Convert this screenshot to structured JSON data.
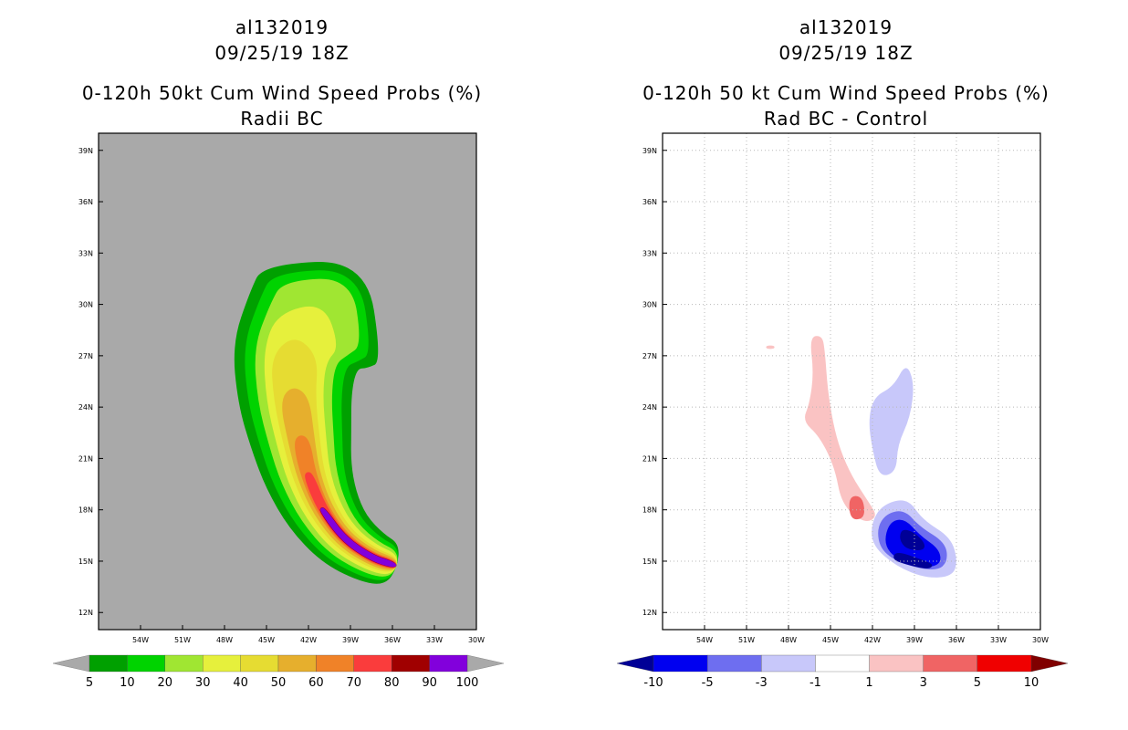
{
  "left": {
    "title_line1": "al132019",
    "title_line2": "09/25/19 18Z",
    "title_line3": "0-120h 50kt Cum Wind Speed Probs (%)",
    "title_line4": "Radii BC"
  },
  "right": {
    "title_line1": "al132019",
    "title_line2": "09/25/19 18Z",
    "title_line3": "0-120h 50 kt Cum Wind Speed Probs (%)",
    "title_line4": "Rad BC - Control"
  },
  "chart_data": [
    {
      "type": "heatmap",
      "panel": "left",
      "title": "0-120h 50kt Cum Wind Speed Probs (%)",
      "subtitle": "Radii BC",
      "storm": "al132019",
      "time": "09/25/19 18Z",
      "xlim": [
        -57,
        -30
      ],
      "ylim": [
        11,
        40
      ],
      "x_ticks": [
        "54W",
        "51W",
        "48W",
        "45W",
        "42W",
        "39W",
        "36W",
        "33W",
        "30W"
      ],
      "y_ticks": [
        "12N",
        "15N",
        "18N",
        "21N",
        "24N",
        "27N",
        "30N",
        "33N",
        "36N",
        "39N"
      ],
      "background": "#a9a9a9",
      "colorbar": {
        "levels": [
          "5",
          "10",
          "20",
          "30",
          "40",
          "50",
          "60",
          "70",
          "80",
          "90",
          "100"
        ],
        "colors": [
          "#00a000",
          "#00d300",
          "#a0e632",
          "#e6f03c",
          "#e6dc32",
          "#e6af2d",
          "#f08228",
          "#fa3c3c",
          "#a00000",
          "#8200dc"
        ]
      },
      "track_center": [
        [
          -36,
          14.8
        ],
        [
          -37.5,
          15.2
        ],
        [
          -39.5,
          16.3
        ],
        [
          -41,
          18
        ],
        [
          -42,
          20
        ],
        [
          -42.5,
          22
        ],
        [
          -43,
          24.5
        ],
        [
          -43,
          27
        ],
        [
          -42,
          28.5
        ],
        [
          -41,
          29.5
        ]
      ]
    },
    {
      "type": "heatmap",
      "panel": "right",
      "title": "0-120h 50 kt Cum Wind Speed Probs (%)",
      "subtitle": "Rad BC - Control",
      "storm": "al132019",
      "time": "09/25/19 18Z",
      "xlim": [
        -57,
        -30
      ],
      "ylim": [
        11,
        40
      ],
      "x_ticks": [
        "54W",
        "51W",
        "48W",
        "45W",
        "42W",
        "39W",
        "36W",
        "33W",
        "30W"
      ],
      "y_ticks": [
        "12N",
        "15N",
        "18N",
        "21N",
        "24N",
        "27N",
        "30N",
        "33N",
        "36N",
        "39N"
      ],
      "grid": true,
      "colorbar": {
        "levels": [
          "-10",
          "-5",
          "-3",
          "-1",
          "1",
          "3",
          "5",
          "10"
        ],
        "colors": [
          "#000096",
          "#0000f0",
          "#6e6ef0",
          "#c8c8fa",
          "#ffffff",
          "#fac3c3",
          "#f06464",
          "#f00000",
          "#800000"
        ]
      }
    }
  ]
}
